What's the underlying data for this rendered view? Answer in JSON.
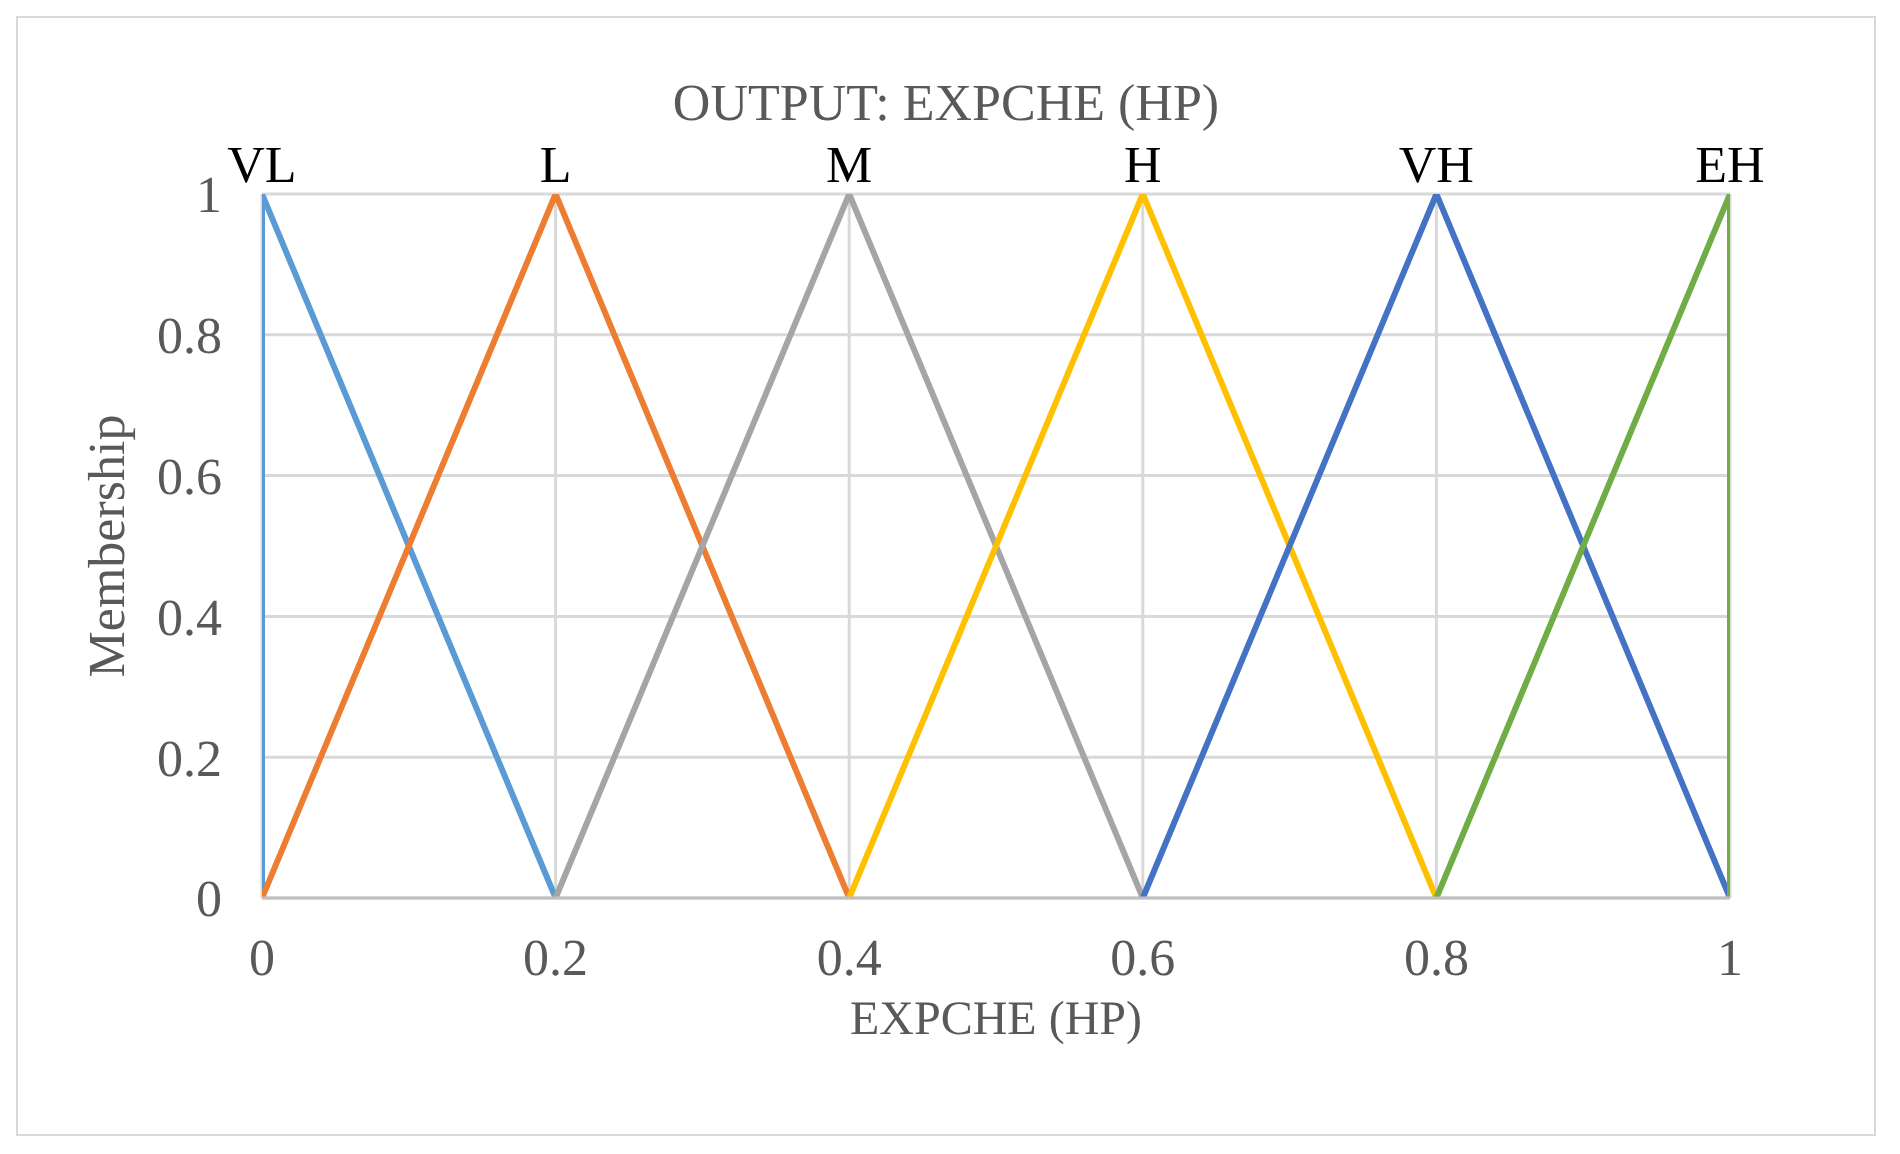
{
  "chart_data": {
    "type": "line",
    "title": "OUTPUT: EXPCHE (HP)",
    "xlabel": "EXPCHE (HP)",
    "ylabel": "Membership",
    "xlim": [
      0,
      1
    ],
    "xticks": [
      0,
      0.2,
      0.4,
      0.6,
      0.8,
      1
    ],
    "ylim": [
      0,
      1
    ],
    "yticks": [
      0,
      0.2,
      0.4,
      0.6,
      0.8,
      1
    ],
    "grid": true,
    "legend": false,
    "marker": "none",
    "line_style": "solid",
    "series": [
      {
        "name": "VL",
        "color": "#5b9bd5",
        "x": [
          0,
          0,
          0.2
        ],
        "values": [
          0,
          1,
          0
        ]
      },
      {
        "name": "L",
        "color": "#ed7d31",
        "x": [
          0,
          0.2,
          0.4
        ],
        "values": [
          0,
          1,
          0
        ]
      },
      {
        "name": "M",
        "color": "#a5a5a5",
        "x": [
          0.2,
          0.4,
          0.6
        ],
        "values": [
          0,
          1,
          0
        ]
      },
      {
        "name": "H",
        "color": "#ffc000",
        "x": [
          0.4,
          0.6,
          0.8
        ],
        "values": [
          0,
          1,
          0
        ]
      },
      {
        "name": "VH",
        "color": "#4472c4",
        "x": [
          0.6,
          0.8,
          1
        ],
        "values": [
          0,
          1,
          0
        ]
      },
      {
        "name": "EH",
        "color": "#70ad47",
        "x": [
          0.8,
          1,
          1
        ],
        "values": [
          0,
          1,
          0
        ]
      }
    ]
  }
}
